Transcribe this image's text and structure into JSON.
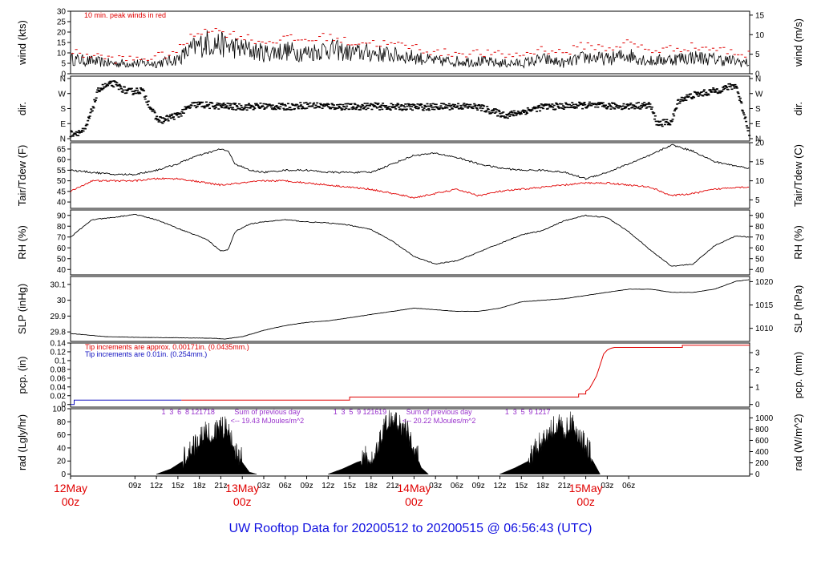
{
  "footer": {
    "title": "UW Rooftop Data for 20200512  to  20200515 @ 06:56:43  (UTC)",
    "title_color": "#1010e0"
  },
  "colors": {
    "axis": "#000000",
    "trace": "#000000",
    "peak": "#e00000",
    "dewpoint": "#e00000",
    "precip_red": "#e00000",
    "precip_blue": "#1010c0",
    "annotation_purple": "#9932cc",
    "date_red": "#e00000"
  },
  "chart_data": [
    {
      "type": "line",
      "id": "wind",
      "ylabel": "wind (kts)",
      "ylabel_right": "wind (m/s)",
      "ylim": [
        0,
        30
      ],
      "ylim_right": [
        0,
        16
      ],
      "yticks": [
        0,
        5,
        10,
        15,
        20,
        25,
        30
      ],
      "yticks_right": [
        0,
        5,
        10,
        15
      ],
      "annotation": "10 min. peak winds in red",
      "series": [
        {
          "role": "mean",
          "x_hours": [
            0,
            3,
            6,
            9,
            12,
            15,
            17,
            19,
            21,
            24,
            27,
            30,
            33,
            36,
            39,
            42,
            45,
            48,
            51,
            54,
            57,
            60,
            63,
            66,
            69,
            72,
            75,
            78,
            81,
            84,
            87,
            90,
            93,
            94.9
          ],
          "values": [
            7,
            6,
            5,
            5,
            5,
            7,
            12,
            15,
            14,
            12,
            10,
            11,
            10,
            12,
            10,
            10,
            9,
            8,
            6,
            6,
            6,
            5,
            5,
            7,
            5,
            8,
            7,
            9,
            6,
            7,
            8,
            7,
            6,
            5
          ]
        },
        {
          "role": "peak",
          "x_hours": [
            0,
            3,
            6,
            9,
            12,
            15,
            17,
            19,
            21,
            24,
            27,
            30,
            33,
            36,
            39,
            42,
            45,
            48,
            51,
            54,
            57,
            60,
            63,
            66,
            69,
            72,
            75,
            78,
            81,
            84,
            87,
            90,
            93,
            94.9
          ],
          "values": [
            10,
            9,
            7,
            7,
            8,
            11,
            18,
            22,
            20,
            18,
            15,
            17,
            16,
            18,
            15,
            15,
            14,
            13,
            10,
            10,
            10,
            9,
            9,
            12,
            10,
            14,
            12,
            15,
            11,
            12,
            13,
            12,
            10,
            9
          ]
        }
      ]
    },
    {
      "type": "scatter",
      "id": "dir",
      "ylabel": "dir.",
      "ylabel_right": "dir.",
      "ycategories": [
        "N",
        "E",
        "S",
        "W",
        "N"
      ],
      "x_hours": [
        0,
        2,
        4,
        6,
        8,
        10,
        12,
        13,
        14,
        15,
        17,
        18,
        19,
        21,
        24,
        27,
        30,
        33,
        36,
        39,
        42,
        45,
        48,
        51,
        54,
        57,
        60,
        61,
        63,
        66,
        69,
        72,
        75,
        78,
        81,
        82,
        84,
        85,
        87,
        90,
        93,
        94.9
      ],
      "values": [
        30,
        45,
        300,
        330,
        280,
        290,
        120,
        110,
        130,
        140,
        200,
        205,
        200,
        195,
        190,
        195,
        190,
        200,
        195,
        190,
        195,
        190,
        190,
        190,
        195,
        190,
        150,
        140,
        160,
        190,
        195,
        200,
        195,
        195,
        200,
        90,
        100,
        230,
        260,
        285,
        320,
        30
      ]
    },
    {
      "type": "line",
      "id": "temp",
      "ylabel": "Tair/Tdew (F)",
      "ylabel_right": "Tair/Tdew (C)",
      "ylim": [
        37,
        68
      ],
      "ylim_right": [
        2.78,
        20
      ],
      "yticks": [
        40,
        45,
        50,
        55,
        60,
        65
      ],
      "yticks_right": [
        5,
        10,
        15,
        20
      ],
      "series": [
        {
          "role": "air",
          "x_hours": [
            0,
            3,
            6,
            9,
            12,
            15,
            17,
            19,
            21,
            22,
            23,
            25,
            27,
            30,
            33,
            36,
            39,
            42,
            45,
            48,
            51,
            54,
            57,
            60,
            63,
            66,
            69,
            72,
            75,
            78,
            81,
            84,
            87,
            90,
            93,
            94.9
          ],
          "values": [
            55,
            54,
            53,
            53,
            55,
            58,
            61,
            63,
            65,
            64,
            58,
            55,
            54,
            55,
            55,
            54,
            54,
            54,
            58,
            62,
            63,
            61,
            58,
            56,
            55,
            55,
            54,
            51,
            54,
            58,
            62,
            67,
            64,
            59,
            57,
            56
          ]
        },
        {
          "role": "dew",
          "x_hours": [
            0,
            3,
            6,
            9,
            12,
            15,
            17,
            19,
            21,
            24,
            27,
            30,
            33,
            36,
            39,
            42,
            45,
            48,
            51,
            54,
            57,
            60,
            63,
            66,
            69,
            72,
            75,
            78,
            81,
            84,
            87,
            90,
            93,
            94.9
          ],
          "values": [
            45,
            50,
            50,
            50,
            51,
            51,
            50,
            49,
            48,
            49,
            50,
            50,
            49,
            48,
            47,
            46,
            44,
            42,
            44,
            46,
            43,
            45,
            46,
            47,
            48,
            49,
            49,
            48,
            47,
            43,
            44,
            46,
            47,
            47
          ]
        }
      ]
    },
    {
      "type": "line",
      "id": "rh",
      "ylabel": "RH (%)",
      "ylabel_right": "RH (%)",
      "ylim": [
        35,
        95
      ],
      "ylim_right": [
        35,
        95
      ],
      "yticks": [
        40,
        50,
        60,
        70,
        80,
        90
      ],
      "yticks_right": [
        40,
        50,
        60,
        70,
        80,
        90
      ],
      "series": [
        {
          "role": "rh",
          "x_hours": [
            0,
            3,
            6,
            9,
            12,
            15,
            17,
            19,
            21,
            22,
            23,
            25,
            27,
            30,
            33,
            36,
            39,
            42,
            45,
            48,
            51,
            54,
            57,
            60,
            63,
            66,
            69,
            72,
            75,
            78,
            81,
            84,
            87,
            90,
            93,
            94.9
          ],
          "values": [
            70,
            86,
            88,
            91,
            86,
            78,
            73,
            68,
            57,
            58,
            75,
            82,
            84,
            86,
            84,
            83,
            81,
            77,
            66,
            52,
            45,
            48,
            56,
            64,
            72,
            76,
            85,
            90,
            88,
            75,
            58,
            43,
            45,
            62,
            71,
            70
          ]
        }
      ]
    },
    {
      "type": "line",
      "id": "slp",
      "ylabel": "SLP (inHg)",
      "ylabel_right": "SLP (hPa)",
      "ylim": [
        29.74,
        30.15
      ],
      "ylim_right": [
        1007.2,
        1021.1
      ],
      "yticks": [
        29.8,
        29.9,
        30.0,
        30.1
      ],
      "yticks_right": [
        1010,
        1015,
        1020
      ],
      "series": [
        {
          "role": "slp",
          "x_hours": [
            0,
            5,
            10,
            15,
            20,
            21.5,
            24,
            27,
            30,
            33,
            36,
            39,
            42,
            45,
            48,
            51,
            54,
            57,
            60,
            63,
            66,
            69,
            72,
            75,
            78,
            81,
            84,
            87,
            90,
            93,
            94.9
          ],
          "values": [
            29.79,
            29.77,
            29.765,
            29.763,
            29.76,
            29.755,
            29.77,
            29.81,
            29.84,
            29.86,
            29.87,
            29.89,
            29.91,
            29.93,
            29.95,
            29.94,
            29.93,
            29.93,
            29.95,
            29.99,
            30.0,
            30.01,
            30.03,
            30.05,
            30.07,
            30.07,
            30.05,
            30.05,
            30.07,
            30.12,
            30.13
          ]
        }
      ]
    },
    {
      "type": "line",
      "id": "pcp",
      "ylabel": "pcp. (in)",
      "ylabel_right": "pcp. (mm)",
      "ylim": [
        -0.006,
        0.14
      ],
      "ylim_right": [
        -0.152,
        3.556
      ],
      "yticks": [
        0,
        0.02,
        0.04,
        0.06,
        0.08,
        0.1,
        0.12,
        0.14
      ],
      "yticks_right": [
        0,
        1,
        2,
        3
      ],
      "annotations": [
        {
          "text": "Tip increments are approx. 0.00171in. (0.0435mm.)",
          "color": "red"
        },
        {
          "text": "Tip increments are 0.01in. (0.254mm.)",
          "color": "blue"
        }
      ],
      "series": [
        {
          "role": "blue",
          "x_hours": [
            0,
            0.5,
            0.5,
            15.5
          ],
          "values": [
            0,
            0,
            0.01,
            0.01
          ]
        },
        {
          "role": "red",
          "x_hours": [
            15.5,
            39,
            39,
            71,
            71,
            72,
            72,
            72.5,
            73,
            73.5,
            74,
            74.5,
            75,
            75.5,
            76,
            79,
            82,
            84,
            85.5,
            85.5,
            94.9
          ],
          "values": [
            0.01,
            0.01,
            0.017,
            0.017,
            0.024,
            0.024,
            0.03,
            0.036,
            0.05,
            0.065,
            0.09,
            0.115,
            0.124,
            0.128,
            0.13,
            0.13,
            0.13,
            0.13,
            0.13,
            0.135,
            0.135
          ]
        }
      ]
    },
    {
      "type": "area",
      "id": "rad",
      "ylabel": "rad (Lgly/hr)",
      "ylabel_right": "rad (W/m^2)",
      "ylim": [
        -3,
        100
      ],
      "ylim_right": [
        -35,
        1163
      ],
      "yticks": [
        0,
        20,
        40,
        60,
        80,
        100
      ],
      "yticks_right": [
        0,
        200,
        400,
        600,
        800,
        1000
      ],
      "daily_sums": [
        {
          "label": "Sum of previous day",
          "value": "<-- 19.43 MJoules/m^2"
        },
        {
          "label": "Sum of previous day",
          "value": "<-- 20.22 MJoules/m^2"
        }
      ],
      "hour_marks": [
        [
          "1",
          "3",
          "6",
          "8",
          "12",
          "17",
          "18"
        ],
        [
          "1",
          "3",
          "5",
          "9",
          "12",
          "16",
          "19"
        ],
        [
          "1",
          "3",
          "5",
          "9",
          "12",
          "17"
        ]
      ],
      "series": [
        {
          "role": "day1",
          "x_hours": [
            12,
            14,
            16,
            18,
            19,
            20,
            21,
            22,
            23,
            24,
            25,
            26
          ],
          "values": [
            0,
            8,
            22,
            48,
            62,
            58,
            65,
            70,
            35,
            18,
            3,
            0
          ]
        },
        {
          "role": "day2",
          "x_hours": [
            36,
            38,
            40,
            42,
            43,
            44,
            45,
            46,
            47,
            48,
            49,
            50
          ],
          "values": [
            0,
            8,
            18,
            25,
            42,
            75,
            85,
            74,
            62,
            40,
            10,
            0
          ]
        },
        {
          "role": "day3",
          "x_hours": [
            60,
            62,
            64,
            66,
            67,
            68,
            69,
            70,
            71,
            72,
            73,
            74
          ],
          "values": [
            0,
            9,
            20,
            50,
            63,
            73,
            62,
            78,
            55,
            40,
            20,
            0
          ]
        }
      ]
    }
  ],
  "time_axis": {
    "start_hour": 0,
    "end_hour": 94.9,
    "tick_labels": [
      "09z",
      "12z",
      "15z",
      "18z",
      "21z",
      "03z",
      "06z",
      "09z",
      "12z",
      "15z",
      "18z",
      "21z",
      "03z",
      "06z",
      "09z",
      "12z",
      "15z",
      "18z",
      "21z",
      "03z",
      "06z"
    ],
    "tick_hours": [
      9,
      12,
      15,
      18,
      21,
      27,
      30,
      33,
      36,
      39,
      42,
      45,
      51,
      54,
      57,
      60,
      63,
      66,
      69,
      75,
      78
    ],
    "day_labels": [
      {
        "date": "12May",
        "time": "00z",
        "hour": 0
      },
      {
        "date": "13May",
        "time": "00z",
        "hour": 24
      },
      {
        "date": "14May",
        "time": "00z",
        "hour": 48
      },
      {
        "date": "15May",
        "time": "00z",
        "hour": 72
      }
    ]
  }
}
